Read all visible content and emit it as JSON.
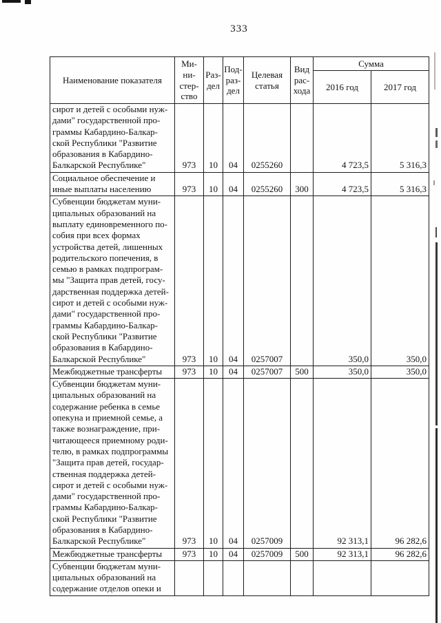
{
  "page": {
    "number": "333",
    "ink_color": "#131313",
    "background_color": "#fefefe"
  },
  "table": {
    "headers": {
      "name": "Наименование показателя",
      "ministry": "Ми-\nни-\nстер-\nство",
      "razdel": "Раз-\nдел",
      "podrazdel": "Под-\nраз-\nдел",
      "target": "Целевая\nстатья",
      "vid": "Вид\nрас-\nхода",
      "summa": "Сумма",
      "year2016": "2016 год",
      "year2017": "2017 год"
    },
    "rows": [
      {
        "name": "сирот и детей с особыми нуж-\nдами\" государственной про-\nграммы Кабардино-Балкар-\nской Республики \"Развитие\nобразования в Кабардино-\nБалкарской Республике\"",
        "ministry": "973",
        "razdel": "10",
        "podrazdel": "04",
        "target": "0255260",
        "vid": "",
        "y2016": "4 723,5",
        "y2017": "5 316,3"
      },
      {
        "name": "Социальное обеспечение и\nиные выплаты населению",
        "ministry": "973",
        "razdel": "10",
        "podrazdel": "04",
        "target": "0255260",
        "vid": "300",
        "y2016": "4 723,5",
        "y2017": "5 316,3"
      },
      {
        "name": "Субвенции бюджетам муни-\nципальных образований на\nвыплату единовременного по-\nсобия при всех формах\nустройства детей, лишенных\nродительского попечения, в\nсемью в рамках подпрограм-\nмы \"Защита прав детей, госу-\nдарственная поддержка детей-\nсирот и детей с особыми нуж-\nдами\" государственной про-\nграммы Кабардино-Балкар-\nской Республики \"Развитие\nобразования в Кабардино-\nБалкарской Республике\"",
        "ministry": "973",
        "razdel": "10",
        "podrazdel": "04",
        "target": "0257007",
        "vid": "",
        "y2016": "350,0",
        "y2017": "350,0"
      },
      {
        "name": "Межбюджетные трансферты",
        "ministry": "973",
        "razdel": "10",
        "podrazdel": "04",
        "target": "0257007",
        "vid": "500",
        "y2016": "350,0",
        "y2017": "350,0"
      },
      {
        "name": "Субвенции бюджетам муни-\nципальных образований на\nсодержание ребенка в семье\nопекуна и приемной семье, а\nтакже вознаграждение, при-\nчитающееся приемному роди-\nтелю, в рамках подпрограммы\n\"Защита прав детей, государ-\nственная поддержка детей-\nсирот и детей с особыми нуж-\nдами\" государственной про-\nграммы Кабардино-Балкар-\nской Республики \"Развитие\nобразования в Кабардино-\nБалкарской Республике\"",
        "ministry": "973",
        "razdel": "10",
        "podrazdel": "04",
        "target": "0257009",
        "vid": "",
        "y2016": "92 313,1",
        "y2017": "96 282,6"
      },
      {
        "name": "Межбюджетные трансферты",
        "ministry": "973",
        "razdel": "10",
        "podrazdel": "04",
        "target": "0257009",
        "vid": "500",
        "y2016": "92 313,1",
        "y2017": "96 282,6"
      },
      {
        "name": "Субвенции бюджетам муни-\nципальных образований на\nсодержание отделов опеки и",
        "ministry": "",
        "razdel": "",
        "podrazdel": "",
        "target": "",
        "vid": "",
        "y2016": "",
        "y2017": ""
      }
    ]
  }
}
